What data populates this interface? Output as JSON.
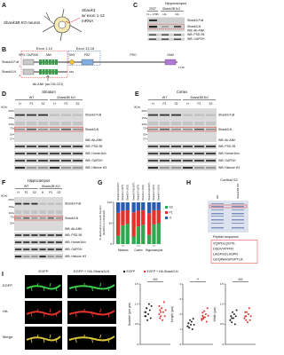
{
  "panel_a": {
    "label": "A",
    "cell": "Shank3B KO neuron",
    "mrna": [
      "Shank3",
      "w/ exon 1-12",
      "mRNA"
    ]
  },
  "panel_c": {
    "label": "C",
    "region": "Hippocampus",
    "groups": [
      "293T",
      "Shank3B KO"
    ],
    "lanes": [
      "FL + 1-536",
      "Hip.",
      "Hip."
    ],
    "bands": [
      "Shank3-Full",
      "Shank3-N"
    ],
    "blots": [
      "WB: Ab-ANK",
      "WB: PSD-95",
      "WB: GAPDH"
    ]
  },
  "panel_b": {
    "label": "B",
    "exons": [
      "Exon 1-12",
      "Exon 13-16"
    ],
    "domains": [
      "SPN / DUF535",
      "ANK",
      "SH3",
      "PDZ",
      "PRO",
      "SAM"
    ],
    "proteins": [
      "Shank3-Full",
      "Shank3-N"
    ],
    "positions": [
      "1",
      "1",
      "536",
      "1730"
    ],
    "antibody": "Ab-ANK (aa 192-221)"
  },
  "blot_panels": [
    {
      "label": "D",
      "region": "Striatum",
      "groups": [
        "WT",
        "Shank3B KO"
      ],
      "lanes": [
        "H",
        "P1",
        "S2",
        "H",
        "P1",
        "S2"
      ],
      "unit": "(kDa)",
      "kda": [
        250,
        150,
        100,
        75,
        50,
        37
      ],
      "bands": [
        "Shank3-Full",
        "Shank3-N"
      ],
      "blots": [
        "WB: Ab-ANK",
        "WB: PSD-95",
        "WB: Homer1b/c",
        "WB: GAPDH",
        "WB: Histone H3"
      ]
    },
    {
      "label": "E",
      "region": "Cortex",
      "groups": [
        "WT",
        "Shank3B KO"
      ],
      "lanes": [
        "H",
        "P1",
        "S2",
        "H",
        "P1",
        "S2"
      ],
      "unit": "(kDa)",
      "kda": [
        250,
        150,
        100,
        75,
        50,
        37
      ],
      "bands": [
        "Shank3-Full",
        "Shank3-N"
      ],
      "blots": [
        "WB: Ab-ANK",
        "WB: PSD-95",
        "WB: Homer1b/c",
        "WB: GAPDH",
        "WB: Histone H3"
      ]
    },
    {
      "label": "F",
      "region": "Hippocampus",
      "groups": [
        "WT",
        "Shank3B KO"
      ],
      "lanes": [
        "H",
        "P1",
        "S2",
        "H",
        "P1",
        "S2"
      ],
      "unit": "(kDa)",
      "kda": [
        250,
        150,
        100,
        75,
        50
      ],
      "bands": [
        "Shank3-Full",
        "Shank3-N"
      ],
      "blots": [
        "WB: Ab-ANK",
        "WB: PSD-95",
        "WB: Homer1b/c",
        "WB: GAPDH",
        "WB: Histone H3"
      ]
    }
  ],
  "panel_g": {
    "label": "G",
    "ylabel": [
      "% distribution to each fraction",
      "(GAPDH normalized)"
    ],
    "regions": [
      "Striatum",
      "Cortex",
      "Hippocampus"
    ],
    "bars": [
      "Shank3-Full (WT)",
      "Shank3-N (WT)",
      "Shank3-N (KO)"
    ],
    "significance": [
      "***",
      "***",
      "***"
    ],
    "ylim": [
      0,
      100
    ],
    "yticks": [
      0,
      50,
      100
    ],
    "series": [
      {
        "name": "S2",
        "color": "#2fa84f",
        "values": [
          [
            20,
            45,
            48
          ],
          [
            18,
            42,
            46
          ],
          [
            22,
            47,
            50
          ]
        ]
      },
      {
        "name": "P1",
        "color": "#e3312d",
        "values": [
          [
            55,
            35,
            33
          ],
          [
            58,
            38,
            35
          ],
          [
            52,
            34,
            31
          ]
        ]
      },
      {
        "name": "H",
        "color": "#2a5db0",
        "values": [
          [
            25,
            20,
            19
          ],
          [
            24,
            20,
            19
          ],
          [
            26,
            19,
            19
          ]
        ]
      }
    ]
  },
  "panel_h": {
    "label": "H",
    "region": "Cortical S2",
    "lanes": [
      "WT",
      "Shank3B KO"
    ],
    "peptide_title": "Peptide sequence",
    "peptides": [
      "VQIPDLQGTK",
      "DSDVVPFFR",
      "LAGPSGLASPR",
      "GDQPAASPGPTLR"
    ]
  },
  "panel_i": {
    "label": "I",
    "columns": [
      "EGFP",
      "EGFP + HA-Shank3-N"
    ],
    "rows": [
      "EGFP",
      "HA",
      "Merge"
    ],
    "groups": [
      {
        "name": "EGFP",
        "color": "#222222"
      },
      {
        "name": "EGFP + HA-Shank3-N",
        "color": "#e3312d"
      }
    ],
    "plots": [
      {
        "ylabel": "Number (per μm)",
        "significance": "NS",
        "ylim": [
          0,
          1.5
        ],
        "yticks": [
          0,
          0.5,
          {
            "value": 1,
            "label": "1.0"
          },
          1.5
        ],
        "values": [
          [
            0.7,
            0.8,
            0.9,
            0.6,
            0.75,
            1.0,
            0.85,
            0.65,
            0.95,
            0.8,
            0.7,
            0.9
          ],
          [
            0.75,
            0.85,
            0.7,
            0.9,
            0.6,
            0.8,
            1.05,
            0.7,
            0.85,
            0.95,
            0.65,
            0.8
          ]
        ]
      },
      {
        "ylabel": "Length (μm)",
        "significance": "**",
        "ylim": [
          0,
          4
        ],
        "yticks": [
          0,
          1,
          2,
          3,
          4
        ],
        "values": [
          [
            1.2,
            1.4,
            1.1,
            1.6,
            1.3,
            1.5,
            1.0,
            1.7,
            1.3,
            1.2,
            1.4,
            1.1
          ],
          [
            1.6,
            1.9,
            1.7,
            2.2,
            1.8,
            2.0,
            1.5,
            2.4,
            1.9,
            1.7,
            2.1,
            1.8
          ]
        ]
      },
      {
        "ylabel": "Width (μm)",
        "significance": "NS",
        "ylim": [
          0,
          1.5
        ],
        "yticks": [
          0,
          0.5,
          {
            "value": 1,
            "label": "1.0"
          },
          1.5
        ],
        "values": [
          [
            0.6,
            0.7,
            0.55,
            0.8,
            0.65,
            0.75,
            0.5,
            0.7,
            0.85,
            0.6,
            0.7,
            0.65
          ],
          [
            0.65,
            0.7,
            0.6,
            0.8,
            0.55,
            0.75,
            0.9,
            0.6,
            0.7,
            0.65,
            0.8,
            0.7
          ]
        ]
      }
    ]
  }
}
